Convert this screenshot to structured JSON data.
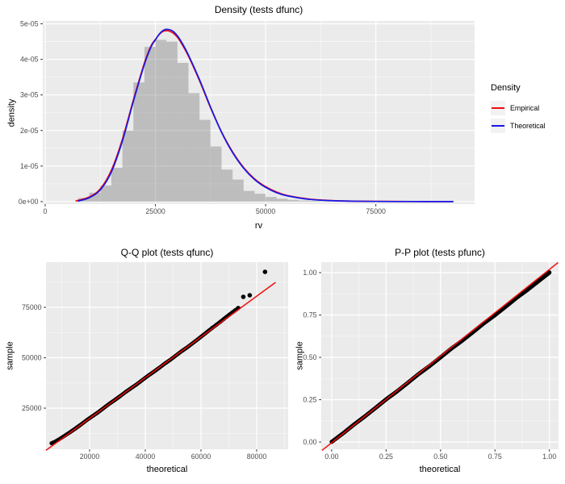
{
  "theme": {
    "panel_bg": "#EBEBEB",
    "grid_color": "#FFFFFF",
    "tick_color": "#333333",
    "tick_label_color": "#4D4D4D",
    "title_color": "#000000",
    "hist_fill": "#666666",
    "hist_alpha": 0.35,
    "point_color": "#000000",
    "legend_key_bg": "#F2F2F2"
  },
  "chart_data": [
    {
      "id": "density",
      "type": "histogram+line",
      "title": "Density (tests dfunc)",
      "xlabel": "rv",
      "ylabel": "density",
      "units": "y values expressed in 1e-06 density units",
      "xlim": [
        -550,
        97400
      ],
      "ylim": [
        -0.7,
        50.8
      ],
      "x_ticks": [
        {
          "v": 0,
          "l": "0"
        },
        {
          "v": 25000,
          "l": "25000"
        },
        {
          "v": 50000,
          "l": "50000"
        },
        {
          "v": 75000,
          "l": "75000"
        }
      ],
      "x_minor": [
        12500,
        37500,
        62500,
        87500
      ],
      "y_ticks": [
        {
          "v": 0,
          "l": "0e+00"
        },
        {
          "v": 10,
          "l": "1e-05"
        },
        {
          "v": 20,
          "l": "2e-05"
        },
        {
          "v": 30,
          "l": "3e-05"
        },
        {
          "v": 40,
          "l": "4e-05"
        },
        {
          "v": 50,
          "l": "5e-05"
        }
      ],
      "y_minor": [
        5,
        15,
        25,
        35,
        45
      ],
      "histogram": {
        "bin_start": 7500,
        "bin_width": 2500,
        "densities": [
          1,
          2.5,
          4.5,
          9.5,
          20,
          33.5,
          43.5,
          45.5,
          45,
          39,
          30.5,
          23,
          15.5,
          9,
          6.2,
          3,
          2.2,
          1.3,
          0.8,
          0.5,
          0.3,
          0.2,
          0.1
        ]
      },
      "series": [
        {
          "name": "Empirical",
          "color": "#f20d0d",
          "x": [
            7000,
            10000,
            12500,
            15000,
            17500,
            20000,
            22500,
            24000,
            25000,
            26000,
            27000,
            28000,
            29000,
            30000,
            31000,
            32500,
            35000,
            37500,
            40000,
            42500,
            45000,
            47500,
            50000,
            52500,
            55000,
            60000,
            65000,
            70000,
            75000,
            80000,
            85000,
            90000,
            92300
          ],
          "y": [
            0.2,
            1.3,
            3.6,
            8.8,
            17.5,
            28.6,
            39.0,
            43.8,
            45.6,
            47.2,
            48.0,
            48.0,
            47.4,
            46.2,
            44.3,
            40.9,
            34.0,
            26.4,
            19.6,
            14.0,
            9.6,
            6.4,
            4.2,
            2.7,
            1.7,
            0.7,
            0.3,
            0.13,
            0.06,
            0.03,
            0.02,
            0.01,
            0.005
          ]
        },
        {
          "name": "Theoretical",
          "color": "#1717e8",
          "x": [
            7500,
            10000,
            12500,
            15000,
            17500,
            20000,
            22500,
            24000,
            25000,
            26000,
            27000,
            28000,
            29000,
            30000,
            31000,
            32500,
            35000,
            37500,
            40000,
            42500,
            45000,
            47500,
            50000,
            52500,
            55000,
            60000,
            65000,
            70000,
            75000,
            80000,
            85000,
            90000,
            92500
          ],
          "y": [
            0.15,
            1.1,
            3.3,
            8.3,
            17.0,
            28.2,
            38.6,
            43.5,
            45.5,
            47.3,
            48.3,
            48.4,
            47.9,
            46.6,
            44.7,
            41.2,
            34.3,
            26.6,
            19.5,
            13.8,
            9.4,
            6.2,
            4.0,
            2.5,
            1.6,
            0.62,
            0.26,
            0.11,
            0.05,
            0.025,
            0.013,
            0.007,
            0.004
          ]
        }
      ],
      "legend": {
        "title": "Density",
        "items": [
          {
            "label": "Empirical",
            "color": "#f20d0d"
          },
          {
            "label": "Theoretical",
            "color": "#1717e8"
          }
        ]
      }
    },
    {
      "id": "qq",
      "type": "scatter",
      "title": "Q-Q plot (tests qfunc)",
      "xlabel": "theoretical",
      "ylabel": "sample",
      "xlim": [
        4350,
        91300
      ],
      "ylim": [
        4600,
        97400
      ],
      "x_ticks": [
        {
          "v": 20000,
          "l": "20000"
        },
        {
          "v": 40000,
          "l": "40000"
        },
        {
          "v": 60000,
          "l": "60000"
        },
        {
          "v": 80000,
          "l": "80000"
        }
      ],
      "x_minor": [
        10000,
        30000,
        50000,
        70000,
        90000
      ],
      "y_ticks": [
        {
          "v": 25000,
          "l": "25000"
        },
        {
          "v": 50000,
          "l": "50000"
        },
        {
          "v": 75000,
          "l": "75000"
        }
      ],
      "y_minor": [
        12500,
        37500,
        62500,
        87500
      ],
      "ref_line": {
        "x1": 4350,
        "y1": 4100,
        "x2": 86800,
        "y2": 87400,
        "color": "#f20d0d"
      },
      "band_width": 4.8,
      "band": [
        [
          6300,
          7600
        ],
        [
          7500,
          8300
        ],
        [
          9000,
          9500
        ],
        [
          11000,
          11300
        ],
        [
          13000,
          13100
        ],
        [
          15000,
          15000
        ],
        [
          17000,
          17000
        ],
        [
          19000,
          19100
        ],
        [
          21000,
          21000
        ],
        [
          23000,
          22900
        ],
        [
          25000,
          25000
        ],
        [
          27000,
          27100
        ],
        [
          29000,
          29000
        ],
        [
          31000,
          31000
        ],
        [
          33000,
          33100
        ],
        [
          35000,
          35000
        ],
        [
          37000,
          36900
        ],
        [
          39000,
          39000
        ],
        [
          41000,
          41100
        ],
        [
          43000,
          43000
        ],
        [
          45000,
          45000
        ],
        [
          47000,
          47100
        ],
        [
          49000,
          49000
        ],
        [
          51000,
          51100
        ],
        [
          53000,
          53200
        ],
        [
          55000,
          55100
        ],
        [
          57000,
          57200
        ],
        [
          59000,
          59300
        ],
        [
          61000,
          61500
        ],
        [
          63000,
          63700
        ],
        [
          65000,
          65800
        ],
        [
          67000,
          67900
        ],
        [
          69000,
          70100
        ],
        [
          70800,
          72000
        ],
        [
          72300,
          73500
        ],
        [
          73500,
          74700
        ]
      ],
      "points": [
        [
          64000,
          64800
        ],
        [
          65500,
          66300
        ],
        [
          67000,
          67900
        ],
        [
          68200,
          69200
        ],
        [
          69300,
          70400
        ],
        [
          70300,
          71500
        ],
        [
          71300,
          72500
        ],
        [
          72300,
          73600
        ],
        [
          73300,
          74700
        ]
      ],
      "outliers": [
        [
          75200,
          80200
        ],
        [
          77500,
          81000
        ],
        [
          83000,
          92600
        ]
      ]
    },
    {
      "id": "pp",
      "type": "scatter",
      "title": "P-P plot (tests pfunc)",
      "xlabel": "theoretical",
      "ylabel": "sample",
      "xlim": [
        -0.048,
        1.042
      ],
      "ylim": [
        -0.043,
        1.062
      ],
      "x_ticks": [
        {
          "v": 0,
          "l": "0.00"
        },
        {
          "v": 0.25,
          "l": "0.25"
        },
        {
          "v": 0.5,
          "l": "0.50"
        },
        {
          "v": 0.75,
          "l": "0.75"
        },
        {
          "v": 1,
          "l": "1.00"
        }
      ],
      "x_minor": [
        0.125,
        0.375,
        0.625,
        0.875
      ],
      "y_ticks": [
        {
          "v": 0,
          "l": "0.00"
        },
        {
          "v": 0.25,
          "l": "0.25"
        },
        {
          "v": 0.5,
          "l": "0.50"
        },
        {
          "v": 0.75,
          "l": "0.75"
        },
        {
          "v": 1,
          "l": "1.00"
        }
      ],
      "y_minor": [
        0.125,
        0.375,
        0.625,
        0.875
      ],
      "ref_line": {
        "x1": -0.045,
        "y1": -0.05,
        "x2": 1.04,
        "y2": 1.06,
        "color": "#f20d0d"
      },
      "band_width": 5,
      "band": [
        [
          0,
          0.001
        ],
        [
          0.05,
          0.049
        ],
        [
          0.1,
          0.101
        ],
        [
          0.15,
          0.149
        ],
        [
          0.2,
          0.2
        ],
        [
          0.25,
          0.252
        ],
        [
          0.3,
          0.299
        ],
        [
          0.35,
          0.35
        ],
        [
          0.4,
          0.402
        ],
        [
          0.45,
          0.449
        ],
        [
          0.5,
          0.5
        ],
        [
          0.55,
          0.552
        ],
        [
          0.6,
          0.599
        ],
        [
          0.65,
          0.65
        ],
        [
          0.7,
          0.702
        ],
        [
          0.75,
          0.749
        ],
        [
          0.8,
          0.8
        ],
        [
          0.85,
          0.852
        ],
        [
          0.9,
          0.899
        ],
        [
          0.95,
          0.95
        ],
        [
          1.0,
          1.0
        ]
      ],
      "points": [
        [
          0,
          0.001
        ],
        [
          1,
          1.002
        ]
      ],
      "outliers": []
    }
  ]
}
